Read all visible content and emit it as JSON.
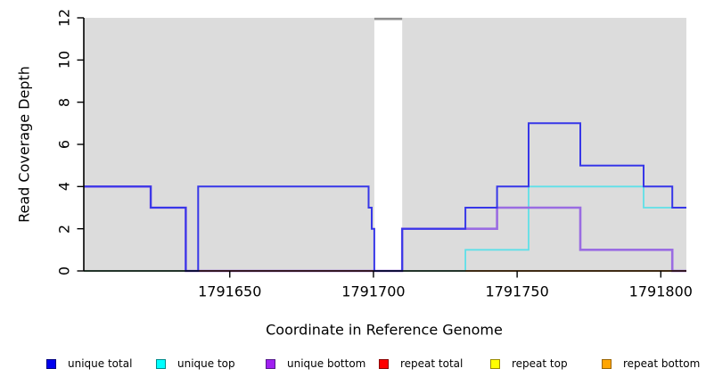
{
  "page": {
    "background": "#ffffff"
  },
  "chart_data": {
    "type": "line",
    "subtype": "step-coverage",
    "title": "",
    "xlabel": "Coordinate in Reference Genome",
    "ylabel": "Read Coverage Depth",
    "xlim": [
      1791599.2,
      1791808.9
    ],
    "ylim": [
      0,
      12
    ],
    "grid": false,
    "plot_bg": "#dcdcdc",
    "axis_color": "#000000",
    "xticks": [
      {
        "v": 1791650,
        "label": "1791650"
      },
      {
        "v": 1791700,
        "label": "1791700"
      },
      {
        "v": 1791750,
        "label": "1791750"
      },
      {
        "v": 1791800,
        "label": "1791800"
      }
    ],
    "yticks": [
      {
        "v": 0,
        "label": "0"
      },
      {
        "v": 2,
        "label": "2"
      },
      {
        "v": 4,
        "label": "4"
      },
      {
        "v": 6,
        "label": "6"
      },
      {
        "v": 8,
        "label": "8"
      },
      {
        "v": 10,
        "label": "10"
      },
      {
        "v": 12,
        "label": "12"
      }
    ],
    "mask_region": {
      "from": 1791700.3,
      "to": 1791710,
      "fill": "#ffffff",
      "cap_color": "#8f8f8f"
    },
    "series": [
      {
        "name": "unique total",
        "color": "#0000ff",
        "steps": [
          [
            1791599.2,
            4
          ],
          [
            1791622.5,
            3
          ],
          [
            1791634.7,
            0
          ],
          [
            1791639,
            4
          ],
          [
            1791698.3,
            3
          ],
          [
            1791699.4,
            2
          ],
          [
            1791700.3,
            0
          ],
          [
            1791710,
            2
          ],
          [
            1791732,
            3
          ],
          [
            1791743,
            4
          ],
          [
            1791754,
            7
          ],
          [
            1791772,
            5
          ],
          [
            1791794,
            4
          ],
          [
            1791804,
            3
          ]
        ],
        "end": 1791808.9
      },
      {
        "name": "unique top",
        "color": "#00ffff",
        "steps": [
          [
            1791599.2,
            0
          ],
          [
            1791732,
            1
          ],
          [
            1791754,
            4
          ],
          [
            1791794,
            3
          ]
        ],
        "end": 1791808.9
      },
      {
        "name": "unique bottom",
        "color": "#a020f0",
        "steps": [
          [
            1791599.2,
            4
          ],
          [
            1791622.5,
            3
          ],
          [
            1791634.7,
            0
          ],
          [
            1791710,
            2
          ],
          [
            1791743,
            3
          ],
          [
            1791772,
            1
          ],
          [
            1791804,
            0
          ]
        ],
        "end": 1791808.9
      },
      {
        "name": "repeat total",
        "color": "#ff0000",
        "steps": [
          [
            1791599.2,
            0
          ]
        ],
        "end": 1791808.9
      },
      {
        "name": "repeat top",
        "color": "#ffff00",
        "steps": [
          [
            1791599.2,
            0
          ]
        ],
        "end": 1791808.9
      },
      {
        "name": "repeat bottom",
        "color": "#ffa500",
        "steps": [
          [
            1791599.2,
            0
          ]
        ],
        "end": 1791808.9
      }
    ],
    "zero_line_segments": [
      {
        "color": "#90cf90",
        "from": 1791599.2,
        "to": 1791634.7
      },
      {
        "color": "#e25772",
        "from": 1791639,
        "to": 1791700.3
      },
      {
        "color": "#90cf90",
        "from": 1791710,
        "to": 1791732
      },
      {
        "color": "#ff9420",
        "from": 1791732,
        "to": 1791804
      },
      {
        "color": "#e25772",
        "from": 1791804,
        "to": 1791808.9
      }
    ],
    "render_order": [
      {
        "series": "unique top",
        "color": "#5fe0e8",
        "width": 1.8
      },
      {
        "series": "unique bottom",
        "color": "#9a6ce2",
        "width": 2.6
      },
      {
        "zero_segments": true,
        "width": 1.7
      },
      {
        "series": "unique total",
        "color": "#3737e8",
        "width": 2.0
      }
    ]
  },
  "legend": {
    "items": [
      {
        "label": "unique total",
        "fill": "#0000ee",
        "border": "#000080"
      },
      {
        "label": "unique top",
        "fill": "#00ffff",
        "border": "#008b8b"
      },
      {
        "label": "unique bottom",
        "fill": "#a020f0",
        "border": "#551a8b"
      },
      {
        "label": "repeat total",
        "fill": "#ff0000",
        "border": "#8b0000"
      },
      {
        "label": "repeat top",
        "fill": "#ffff00",
        "border": "#9a8b00"
      },
      {
        "label": "repeat bottom",
        "fill": "#ffa500",
        "border": "#9a6400"
      }
    ]
  }
}
